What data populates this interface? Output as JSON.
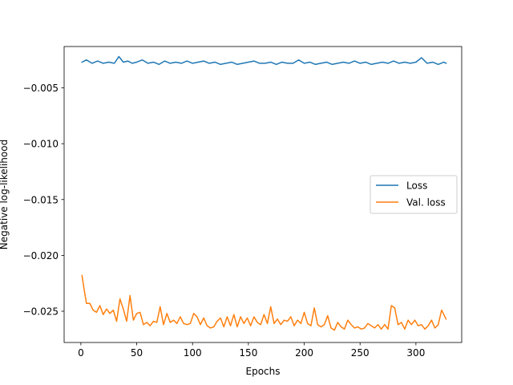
{
  "chart_data": {
    "type": "line",
    "title": "",
    "xlabel": "Epochs",
    "ylabel": "Negative log-likelihood",
    "xlim": [
      -15,
      341
    ],
    "ylim": [
      -0.0278,
      -0.0013
    ],
    "xticks": [
      0,
      50,
      100,
      150,
      200,
      250,
      300
    ],
    "xtick_labels": [
      "0",
      "50",
      "100",
      "150",
      "200",
      "250",
      "300"
    ],
    "yticks": [
      -0.005,
      -0.01,
      -0.015,
      -0.02,
      -0.025
    ],
    "ytick_labels": [
      "−0.005",
      "−0.010",
      "−0.015",
      "−0.020",
      "−0.025"
    ],
    "grid": false,
    "legend_position": "center-right",
    "series": [
      {
        "name": "Loss",
        "color": "#1f77b4",
        "x": [
          1,
          5,
          10,
          15,
          20,
          25,
          30,
          34,
          38,
          42,
          46,
          50,
          55,
          60,
          65,
          70,
          75,
          80,
          85,
          90,
          95,
          100,
          105,
          110,
          115,
          120,
          125,
          130,
          135,
          140,
          145,
          150,
          155,
          160,
          165,
          170,
          175,
          180,
          185,
          190,
          195,
          200,
          205,
          210,
          215,
          220,
          225,
          230,
          235,
          240,
          245,
          250,
          255,
          260,
          265,
          270,
          275,
          280,
          285,
          290,
          295,
          300,
          305,
          310,
          315,
          320,
          325,
          327
        ],
        "y": [
          -0.0027,
          -0.0025,
          -0.0028,
          -0.0026,
          -0.0028,
          -0.0027,
          -0.0028,
          -0.0022,
          -0.0027,
          -0.0026,
          -0.0028,
          -0.0027,
          -0.0025,
          -0.0028,
          -0.0027,
          -0.0029,
          -0.0026,
          -0.0028,
          -0.0027,
          -0.0028,
          -0.0026,
          -0.0028,
          -0.0027,
          -0.0026,
          -0.0028,
          -0.0027,
          -0.0029,
          -0.0028,
          -0.0027,
          -0.0029,
          -0.0028,
          -0.0027,
          -0.0026,
          -0.0028,
          -0.0028,
          -0.0027,
          -0.0029,
          -0.0027,
          -0.0028,
          -0.0028,
          -0.0025,
          -0.0028,
          -0.0027,
          -0.0029,
          -0.0028,
          -0.0027,
          -0.0029,
          -0.0028,
          -0.0027,
          -0.0028,
          -0.0026,
          -0.0028,
          -0.0027,
          -0.0029,
          -0.0028,
          -0.0027,
          -0.0028,
          -0.0026,
          -0.0028,
          -0.0027,
          -0.0028,
          -0.0027,
          -0.0023,
          -0.0028,
          -0.0027,
          -0.0029,
          -0.0027,
          -0.0028
        ]
      },
      {
        "name": "Val. loss",
        "color": "#ff7f0e",
        "x": [
          1,
          3,
          5,
          8,
          11,
          14,
          17,
          20,
          23,
          26,
          29,
          32,
          35,
          38,
          41,
          44,
          47,
          50,
          53,
          56,
          59,
          62,
          65,
          68,
          71,
          74,
          77,
          80,
          83,
          86,
          89,
          92,
          95,
          98,
          101,
          104,
          107,
          110,
          113,
          116,
          119,
          122,
          125,
          128,
          131,
          134,
          137,
          140,
          143,
          146,
          149,
          152,
          155,
          158,
          161,
          164,
          167,
          170,
          173,
          176,
          179,
          182,
          185,
          188,
          191,
          194,
          197,
          200,
          203,
          206,
          209,
          212,
          215,
          218,
          221,
          224,
          227,
          230,
          233,
          236,
          239,
          242,
          245,
          248,
          251,
          254,
          257,
          260,
          263,
          266,
          269,
          272,
          275,
          278,
          281,
          284,
          287,
          290,
          293,
          296,
          299,
          302,
          305,
          308,
          311,
          314,
          317,
          320,
          323,
          326,
          327
        ],
        "y": [
          -0.0218,
          -0.0231,
          -0.0243,
          -0.0243,
          -0.0249,
          -0.0251,
          -0.0245,
          -0.0253,
          -0.0248,
          -0.0252,
          -0.0249,
          -0.0259,
          -0.0239,
          -0.0248,
          -0.0259,
          -0.0236,
          -0.0258,
          -0.0252,
          -0.0251,
          -0.0262,
          -0.026,
          -0.0263,
          -0.0259,
          -0.026,
          -0.0246,
          -0.0262,
          -0.0252,
          -0.026,
          -0.0258,
          -0.0261,
          -0.0255,
          -0.0261,
          -0.0262,
          -0.0261,
          -0.0252,
          -0.0255,
          -0.0262,
          -0.0256,
          -0.0263,
          -0.0265,
          -0.0264,
          -0.0259,
          -0.0256,
          -0.0264,
          -0.0255,
          -0.0263,
          -0.0253,
          -0.0264,
          -0.0255,
          -0.0261,
          -0.0256,
          -0.0263,
          -0.0255,
          -0.026,
          -0.0262,
          -0.0253,
          -0.0261,
          -0.0246,
          -0.0261,
          -0.0257,
          -0.0262,
          -0.0258,
          -0.0259,
          -0.0255,
          -0.0263,
          -0.0258,
          -0.0261,
          -0.0251,
          -0.0261,
          -0.0263,
          -0.0247,
          -0.0262,
          -0.0264,
          -0.0262,
          -0.0254,
          -0.0265,
          -0.0267,
          -0.026,
          -0.0264,
          -0.0266,
          -0.0258,
          -0.0262,
          -0.0265,
          -0.0264,
          -0.0266,
          -0.0265,
          -0.0261,
          -0.0263,
          -0.0265,
          -0.0262,
          -0.0266,
          -0.0262,
          -0.0266,
          -0.0245,
          -0.0247,
          -0.0262,
          -0.026,
          -0.0266,
          -0.0258,
          -0.0262,
          -0.0258,
          -0.0263,
          -0.0262,
          -0.0266,
          -0.0263,
          -0.0258,
          -0.0265,
          -0.0262,
          -0.0249,
          -0.0255,
          -0.0257
        ]
      }
    ]
  }
}
